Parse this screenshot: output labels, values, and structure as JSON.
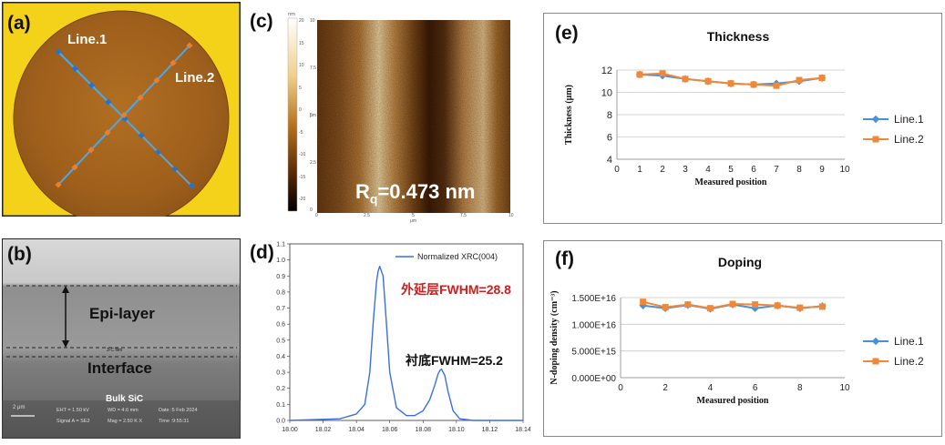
{
  "panels": {
    "a": {
      "label": "(a)",
      "line1": "Line.1",
      "line2": "Line.2",
      "colors": {
        "background": "#f5d21a",
        "wafer": "#a2661f",
        "line": "#4fa7e6",
        "line1_marker": "#1e76d4",
        "line2_marker": "#f07d2a"
      }
    },
    "b": {
      "label": "(b)",
      "epi_label": "Epi-layer",
      "film_label": "3-C film",
      "interface_label": "Interface",
      "bulk_label": "Bulk SiC",
      "scale_label": "2 μm",
      "meta": {
        "eht": "EHT = 1.50 kV",
        "wd": "WD = 4.6 mm",
        "date": "Date :5 Feb 2024",
        "signal": "Signal A = SE2",
        "mag": "Mag = 2.50 K X",
        "time": "Time :9:55:31"
      }
    },
    "c": {
      "label": "(c)",
      "roughness_prefix": "R",
      "roughness_sub": "q",
      "roughness_value": "=0.473 nm",
      "scale_labels": [
        "20",
        "15",
        "10",
        "5",
        "0",
        "-5",
        "-10",
        "-15",
        "-20"
      ],
      "scale_unit": "nm",
      "x_ticks": [
        "0",
        "2.5",
        "5",
        "7.5",
        "10"
      ],
      "y_ticks": [
        "10",
        "7.5",
        "5",
        "2.5",
        "0"
      ],
      "axis_unit": "μm"
    },
    "d": {
      "label": "(d)"
    },
    "e": {
      "label": "(e)"
    },
    "f": {
      "label": "(f)"
    }
  },
  "chart_data": [
    {
      "type": "line",
      "title": "",
      "legend": "Normalized XRC(004)",
      "xlabel": "",
      "ylabel": "",
      "xlim": [
        18.0,
        18.14
      ],
      "ylim": [
        0.0,
        1.1
      ],
      "x_ticks": [
        "18.00",
        "18.02",
        "18.04",
        "18.06",
        "18.08",
        "18.10",
        "18.12",
        "18.14"
      ],
      "y_ticks": [
        "0.0",
        "0.1",
        "0.2",
        "0.3",
        "0.4",
        "0.5",
        "0.6",
        "0.7",
        "0.8",
        "0.9",
        "1.0",
        "1.1"
      ],
      "annotations": [
        "外延层FWHM=28.8",
        "衬底FWHM=25.2"
      ],
      "series": [
        {
          "name": "Normalized XRC(004)",
          "x": [
            18.0,
            18.03,
            18.04,
            18.045,
            18.048,
            18.05,
            18.052,
            18.053,
            18.054,
            18.056,
            18.058,
            18.06,
            18.064,
            18.07,
            18.075,
            18.08,
            18.084,
            18.087,
            18.089,
            18.09,
            18.091,
            18.093,
            18.095,
            18.098,
            18.102,
            18.11,
            18.14
          ],
          "y": [
            0.0,
            0.01,
            0.04,
            0.1,
            0.3,
            0.6,
            0.86,
            0.93,
            0.96,
            0.9,
            0.6,
            0.3,
            0.08,
            0.03,
            0.03,
            0.06,
            0.13,
            0.22,
            0.29,
            0.31,
            0.32,
            0.28,
            0.18,
            0.06,
            0.01,
            0.0,
            0.0
          ]
        }
      ]
    },
    {
      "type": "line",
      "title": "Thickness",
      "xlabel": "Measured position",
      "ylabel": "Thickness (μm)",
      "xlim": [
        0,
        10
      ],
      "ylim": [
        4,
        12
      ],
      "x_ticks": [
        "0",
        "1",
        "2",
        "3",
        "4",
        "5",
        "6",
        "7",
        "8",
        "9",
        "10"
      ],
      "y_ticks": [
        "4",
        "6",
        "8",
        "10",
        "12"
      ],
      "grid": true,
      "legend_position": "right",
      "series": [
        {
          "name": "Line.1",
          "color": "#4a90d9",
          "x": [
            1,
            2,
            3,
            4,
            5,
            6,
            7,
            8,
            9
          ],
          "y": [
            11.6,
            11.5,
            11.2,
            11.0,
            10.8,
            10.7,
            10.8,
            11.0,
            11.3
          ]
        },
        {
          "name": "Line.2",
          "color": "#f0883a",
          "x": [
            1,
            2,
            3,
            4,
            5,
            6,
            7,
            8,
            9
          ],
          "y": [
            11.6,
            11.7,
            11.2,
            11.0,
            10.8,
            10.7,
            10.6,
            11.1,
            11.3
          ]
        }
      ]
    },
    {
      "type": "line",
      "title": "Doping",
      "xlabel": "Measured position",
      "ylabel": "N-doping density (cm⁻³)",
      "xlim": [
        0,
        10
      ],
      "ylim": [
        0,
        1.5e+16
      ],
      "x_ticks": [
        "0",
        "2",
        "4",
        "6",
        "8",
        "10"
      ],
      "y_ticks": [
        "0.000E+00",
        "5.000E+15",
        "1.000E+16",
        "1.500E+16"
      ],
      "grid": true,
      "legend_position": "right",
      "series": [
        {
          "name": "Line.1",
          "color": "#4a90d9",
          "x": [
            1,
            2,
            3,
            4,
            5,
            6,
            7,
            8,
            9
          ],
          "y": [
            1.35e+16,
            1.3e+16,
            1.36e+16,
            1.29e+16,
            1.37e+16,
            1.3e+16,
            1.35e+16,
            1.3e+16,
            1.34e+16
          ]
        },
        {
          "name": "Line.2",
          "color": "#f0883a",
          "x": [
            1,
            2,
            3,
            4,
            5,
            6,
            7,
            8,
            9
          ],
          "y": [
            1.42e+16,
            1.32e+16,
            1.37e+16,
            1.3e+16,
            1.38e+16,
            1.37e+16,
            1.35e+16,
            1.31e+16,
            1.33e+16
          ]
        }
      ]
    }
  ]
}
